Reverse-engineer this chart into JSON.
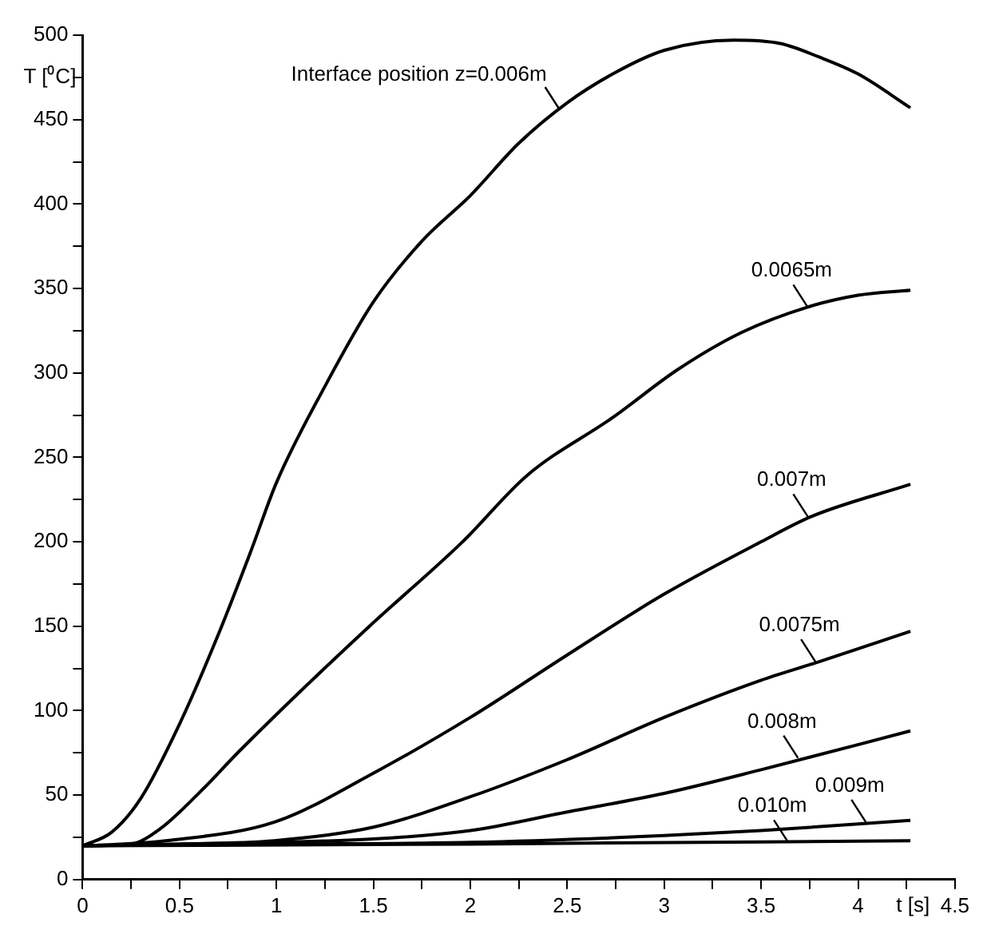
{
  "chart_data": {
    "type": "line",
    "xlabel": "t [s]",
    "ylabel": "T [⁰C]",
    "xlim": [
      0,
      4.5
    ],
    "ylim": [
      0,
      500
    ],
    "xticks": [
      0,
      {
        "value": 0.25,
        "label": null
      },
      0.5,
      {
        "value": 0.75,
        "label": null
      },
      1,
      {
        "value": 1.25,
        "label": null
      },
      1.5,
      {
        "value": 1.75,
        "label": null
      },
      2,
      {
        "value": 2.25,
        "label": null
      },
      2.5,
      {
        "value": 2.75,
        "label": null
      },
      3,
      {
        "value": 3.25,
        "label": null
      },
      3.5,
      {
        "value": 3.75,
        "label": null
      },
      4,
      {
        "value": 4.25,
        "label": null
      },
      4.5
    ],
    "yticks": [
      0,
      {
        "value": 25,
        "label": null
      },
      50,
      {
        "value": 75,
        "label": null
      },
      100,
      {
        "value": 125,
        "label": null
      },
      150,
      {
        "value": 175,
        "label": null
      },
      200,
      {
        "value": 225,
        "label": null
      },
      250,
      {
        "value": 275,
        "label": null
      },
      300,
      {
        "value": 325,
        "label": null
      },
      350,
      {
        "value": 375,
        "label": null
      },
      400,
      {
        "value": 425,
        "label": null
      },
      450,
      {
        "value": 475,
        "label": null
      },
      500
    ],
    "grid": false,
    "legend": false,
    "marker": "none",
    "line_style": "solid",
    "series": [
      {
        "color": "#000000",
        "x": [
          0,
          0.15,
          0.3,
          0.5,
          0.7,
          0.87,
          1,
          1.25,
          1.5,
          1.75,
          2,
          2.25,
          2.5,
          2.75,
          3,
          3.36,
          3.6,
          3.8,
          4,
          4.27
        ],
        "values": [
          20,
          28,
          48,
          92,
          145,
          195,
          235,
          292,
          342,
          378,
          405,
          436,
          460,
          478,
          491,
          497,
          495,
          487,
          477,
          457
        ]
      },
      {
        "color": "#000000",
        "x": [
          0,
          0.25,
          0.4,
          0.59,
          0.8,
          1.02,
          1.48,
          1.96,
          2.29,
          2.74,
          3.07,
          3.4,
          3.74,
          4,
          4.27
        ],
        "values": [
          20,
          21,
          30,
          50,
          75,
          100,
          150,
          200,
          239,
          274,
          302,
          324,
          339,
          346,
          349
        ]
      },
      {
        "color": "#000000",
        "x": [
          0,
          0.2,
          0.43,
          0.99,
          1.5,
          2,
          2.5,
          3,
          3.5,
          3.76,
          4.27
        ],
        "values": [
          20,
          21,
          23,
          34,
          63,
          96,
          133,
          169,
          200,
          215,
          234
        ]
      },
      {
        "color": "#000000",
        "x": [
          0,
          0.5,
          0.99,
          1.5,
          2,
          2.5,
          3,
          3.5,
          3.8,
          4.27
        ],
        "values": [
          20,
          21,
          23,
          31,
          49,
          71,
          96,
          118,
          129,
          147
        ]
      },
      {
        "color": "#000000",
        "x": [
          0,
          1,
          1.5,
          2,
          2.5,
          3,
          3.5,
          4.27
        ],
        "values": [
          20,
          22,
          24,
          29,
          40,
          51,
          65,
          88
        ]
      },
      {
        "color": "#000000",
        "x": [
          0,
          1,
          2,
          3,
          3.5,
          4.27
        ],
        "values": [
          20,
          21,
          22,
          26,
          29,
          35
        ]
      },
      {
        "color": "#000000",
        "x": [
          0,
          2,
          4.27
        ],
        "values": [
          20,
          21,
          23
        ]
      }
    ],
    "annotations": [
      {
        "text": "Interface position z=0.006m",
        "x": 2.46,
        "y": 456
      },
      {
        "text": "0.0065m",
        "x": 3.74,
        "y": 339
      },
      {
        "text": "0.007m",
        "x": 3.74,
        "y": 215
      },
      {
        "text": "0.0075m",
        "x": 3.78,
        "y": 129
      },
      {
        "text": "0.008m",
        "x": 3.69,
        "y": 72
      },
      {
        "text": "0.009m",
        "x": 4.04,
        "y": 34
      },
      {
        "text": "0.010m",
        "x": 3.64,
        "y": 22
      }
    ]
  }
}
